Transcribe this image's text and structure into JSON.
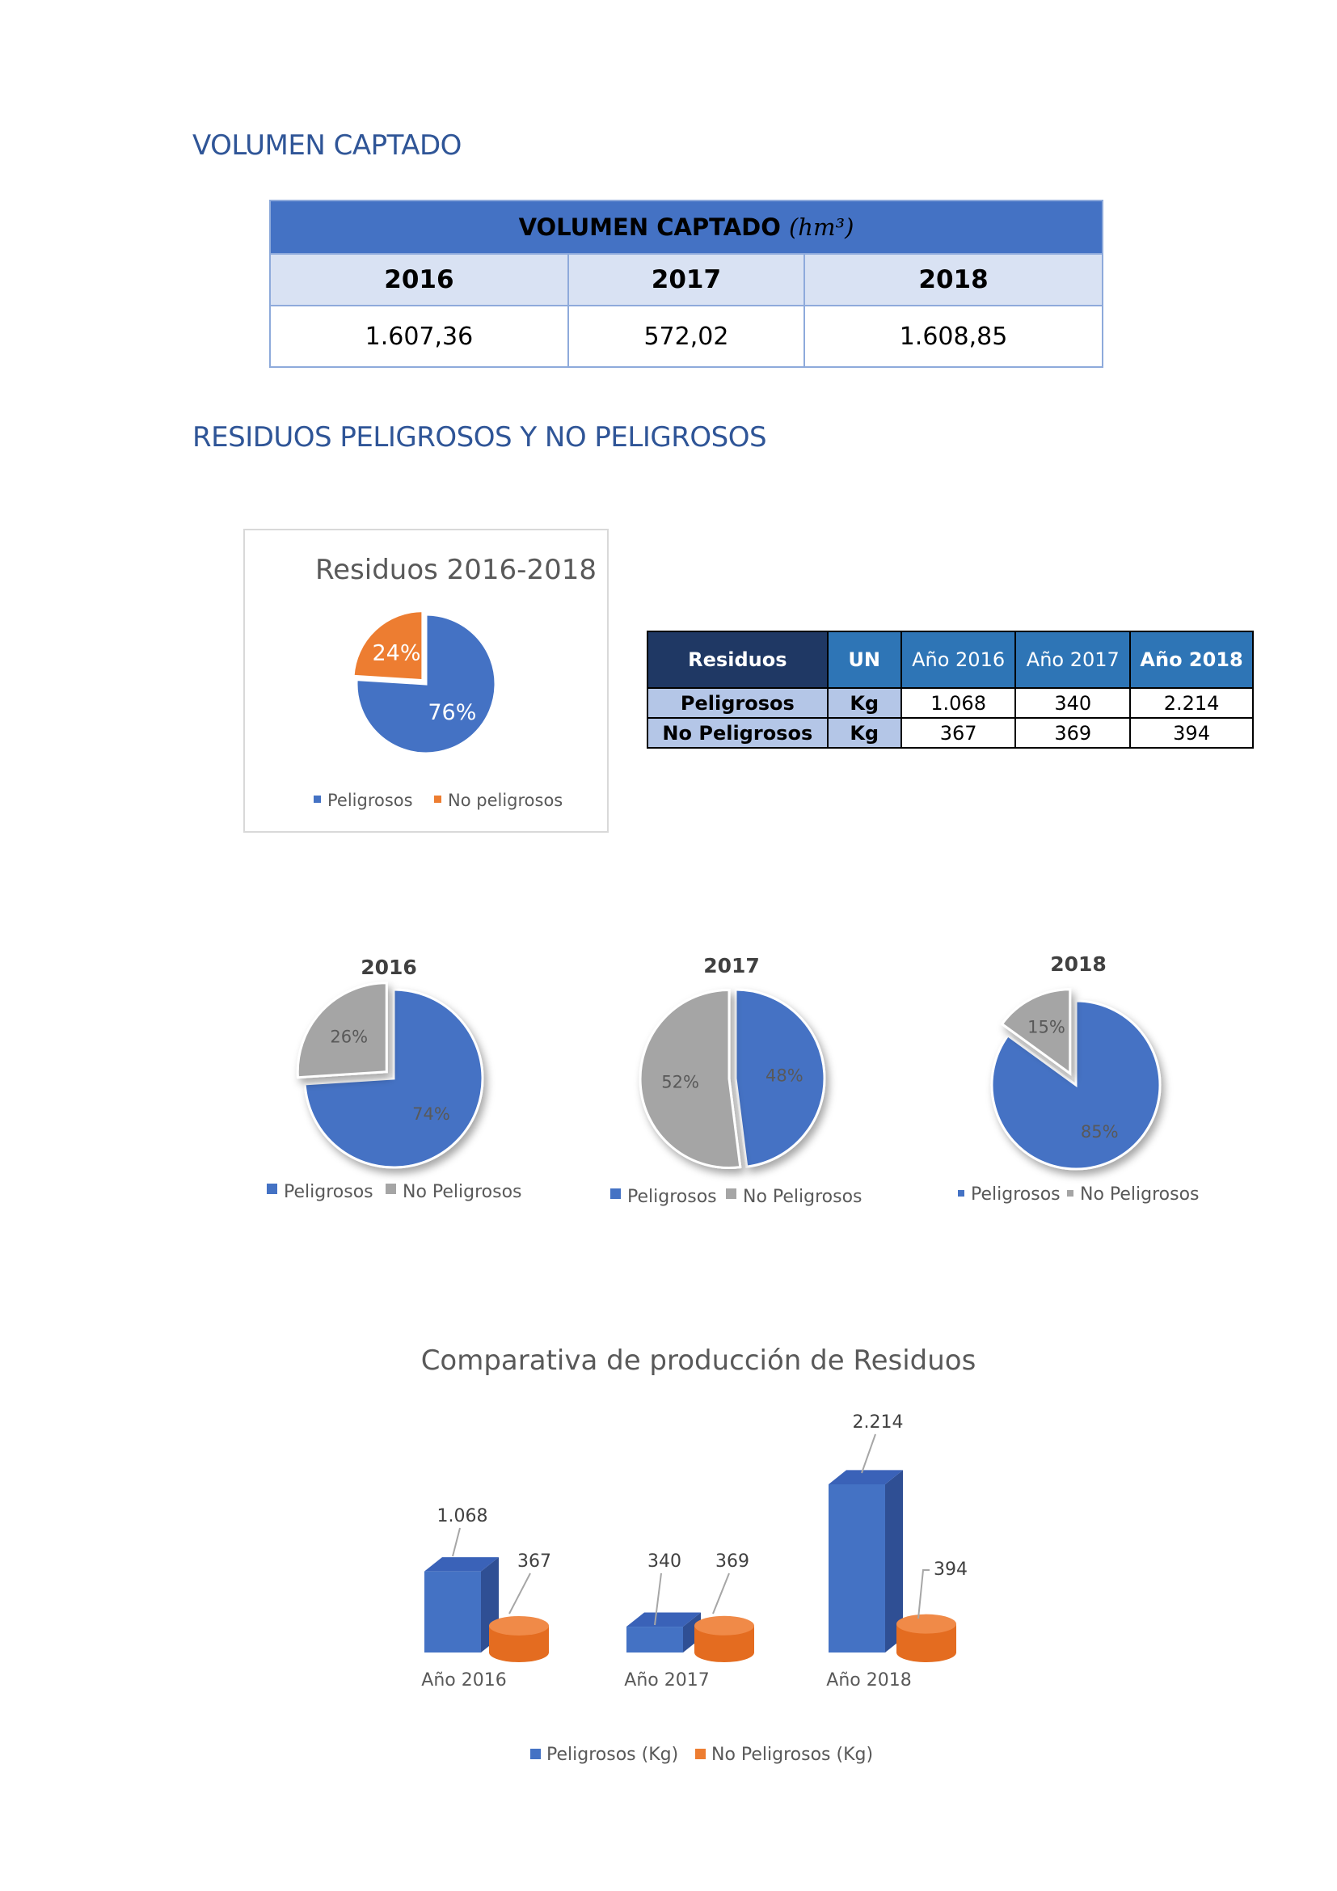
{
  "section1": {
    "heading": "VOLUMEN CAPTADO",
    "table": {
      "title": "VOLUMEN CAPTADO",
      "unit": "(hm³)",
      "years": [
        "2016",
        "2017",
        "2018"
      ],
      "values": [
        "1.607,36",
        "572,02",
        "1.608,85"
      ]
    }
  },
  "section2": {
    "heading": "RESIDUOS PELIGROSOS Y NO PELIGROSOS",
    "table": {
      "headers": [
        "Residuos",
        "UN",
        "Año 2016",
        "Año 2017",
        "Año 2018"
      ],
      "rows": [
        {
          "label": "Peligrosos",
          "unit": "Kg",
          "v2016": "1.068",
          "v2017": "340",
          "v2018": "2.214"
        },
        {
          "label": "No Peligrosos",
          "unit": "Kg",
          "v2016": "367",
          "v2017": "369",
          "v2018": "394"
        }
      ]
    }
  },
  "colors": {
    "heading_blue": "#2f5597",
    "peligrosos": "#4472c4",
    "no_peligrosos_orange": "#ed7d31",
    "no_peligrosos_gray": "#a5a5a5"
  },
  "chart_data": [
    {
      "type": "pie",
      "title": "Residuos 2016-2018",
      "labels": [
        "Peligrosos",
        "No peligrosos"
      ],
      "values": [
        76,
        24
      ],
      "data_labels": [
        "76%",
        "24%"
      ],
      "legend": [
        "Peligrosos",
        "No peligrosos"
      ],
      "legend_position": "bottom"
    },
    {
      "type": "pie",
      "title": "2016",
      "labels": [
        "Peligrosos",
        "No Peligrosos"
      ],
      "values": [
        74,
        26
      ],
      "data_labels": [
        "74%",
        "26%"
      ],
      "legend": [
        "Peligrosos",
        "No Peligrosos"
      ],
      "legend_position": "bottom"
    },
    {
      "type": "pie",
      "title": "2017",
      "labels": [
        "Peligrosos",
        "No Peligrosos"
      ],
      "values": [
        48,
        52
      ],
      "data_labels": [
        "48%",
        "52%"
      ],
      "legend": [
        "Peligrosos",
        "No Peligrosos"
      ],
      "legend_position": "bottom"
    },
    {
      "type": "pie",
      "title": "2018",
      "labels": [
        "Peligrosos",
        "No Peligrosos"
      ],
      "values": [
        85,
        15
      ],
      "data_labels": [
        "85%",
        "15%"
      ],
      "legend": [
        "Peligrosos",
        "No Peligrosos"
      ],
      "legend_position": "bottom"
    },
    {
      "type": "bar",
      "title": "Comparativa de producción de Residuos",
      "categories": [
        "Año 2016",
        "Año 2017",
        "Año 2018"
      ],
      "series": [
        {
          "name": "Peligrosos (Kg)",
          "values": [
            1068,
            340,
            2214
          ],
          "labels": [
            "1.068",
            "340",
            "2.214"
          ]
        },
        {
          "name": "No Peligrosos (Kg)",
          "values": [
            367,
            369,
            394
          ],
          "labels": [
            "367",
            "369",
            "394"
          ]
        }
      ],
      "legend_position": "bottom",
      "grid": false
    }
  ]
}
